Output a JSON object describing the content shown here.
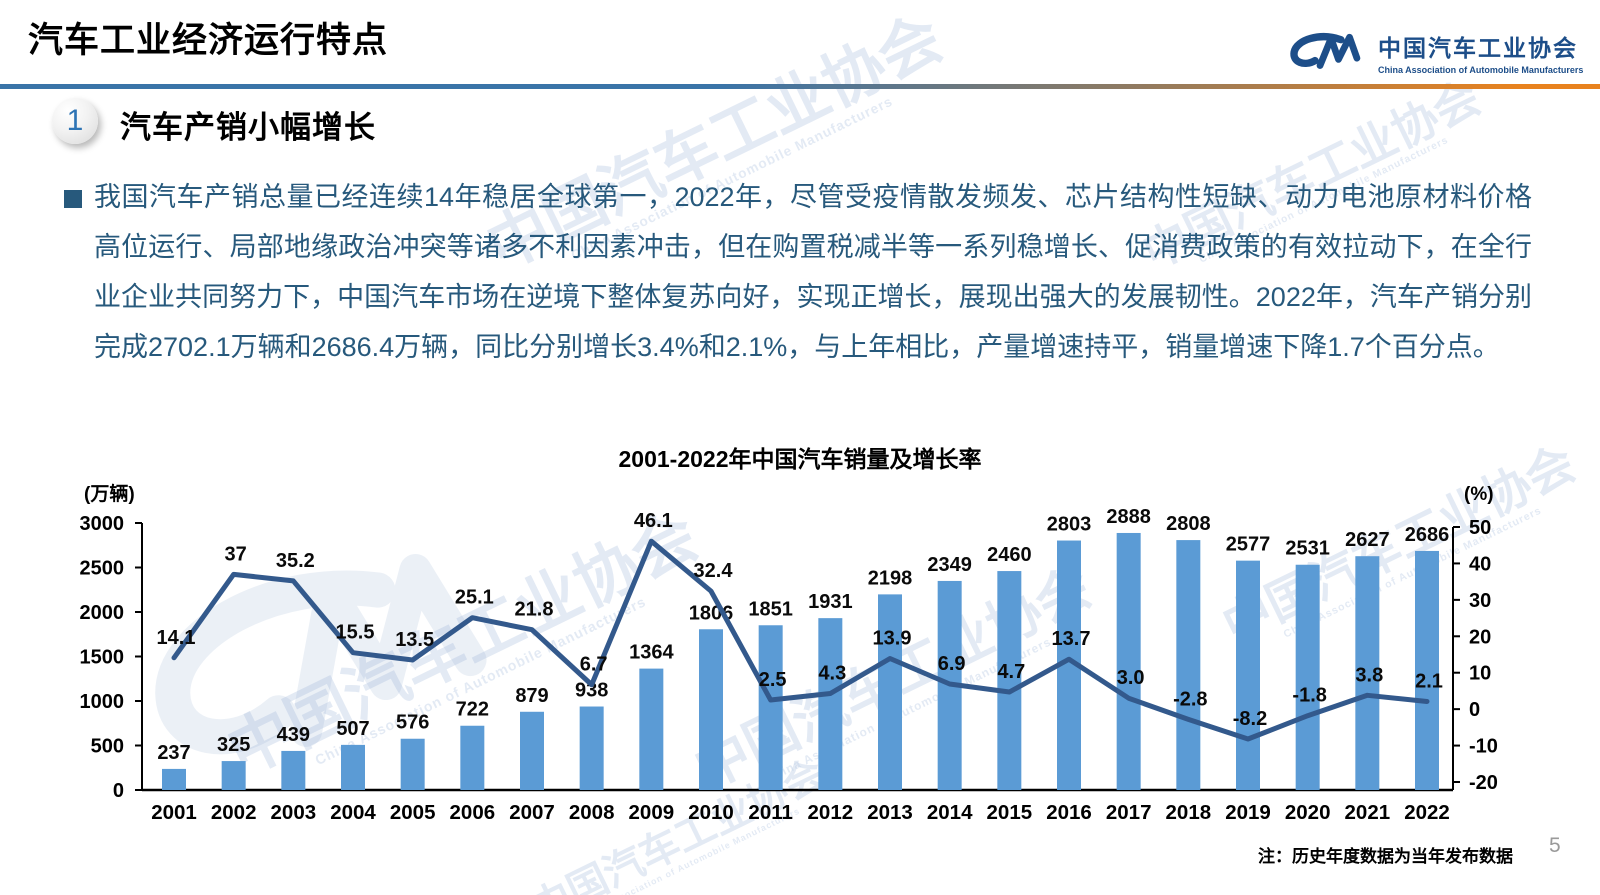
{
  "page": {
    "title": "汽车工业经济运行特点",
    "note": "注：历史年度数据为当年发布数据",
    "page_number": "5"
  },
  "logo": {
    "name_cn": "中国汽车工业协会",
    "name_en": "China Association of Automobile Manufacturers"
  },
  "section": {
    "number": "1",
    "heading": "汽车产销小幅增长"
  },
  "body_paragraph": "我国汽车产销总量已经连续14年稳居全球第一，2022年，尽管受疫情散发频发、芯片结构性短缺、动力电池原材料价格高位运行、局部地缘政治冲突等诸多不利因素冲击，但在购置税减半等一系列稳增长、促消费政策的有效拉动下，在全行业企业共同努力下，中国汽车市场在逆境下整体复苏向好，实现正增长，展现出强大的发展韧性。2022年，汽车产销分别完成2702.1万辆和2686.4万辆，同比分别增长3.4%和2.1%，与上年相比，产量增速持平，销量增速下降1.7个百分点。",
  "watermark": {
    "text_cn": "中国汽车工业协会",
    "text_en": "China Association of Automobile Manufacturers"
  },
  "colors": {
    "bar": "#5b9bd5",
    "line": "#33598c",
    "body_text": "#27597c",
    "logo_blue": "#1d4e89",
    "rule_left": "#3a74a8",
    "rule_right": "#e8821e"
  },
  "chart_data": {
    "type": "bar",
    "combo": "bar+line",
    "title": "2001-2022年中国汽车销量及增长率",
    "grid": false,
    "legend_position": "none",
    "left_axis": {
      "label": "(万辆)",
      "min": 0,
      "max": 3000,
      "step": 500
    },
    "right_axis": {
      "label": "(%)",
      "min": -20,
      "max": 50,
      "step": 10
    },
    "categories": [
      "2001",
      "2002",
      "2003",
      "2004",
      "2005",
      "2006",
      "2007",
      "2008",
      "2009",
      "2010",
      "2011",
      "2012",
      "2013",
      "2014",
      "2015",
      "2016",
      "2017",
      "2018",
      "2019",
      "2020",
      "2021",
      "2022"
    ],
    "series": [
      {
        "name": "汽车销量",
        "type": "bar",
        "axis": "left",
        "color": "#5b9bd5",
        "values": [
          237,
          325,
          439,
          507,
          576,
          722,
          879,
          938,
          1364,
          1806,
          1851,
          1931,
          2198,
          2349,
          2460,
          2803,
          2888,
          2808,
          2577,
          2531,
          2627,
          2686
        ]
      },
      {
        "name": "增长率",
        "type": "line",
        "axis": "right",
        "color": "#33598c",
        "values": [
          14.1,
          37,
          35.2,
          15.5,
          13.5,
          25.1,
          21.8,
          6.7,
          46.1,
          32.4,
          2.5,
          4.3,
          13.9,
          6.9,
          4.7,
          13.7,
          3.0,
          -2.8,
          -8.2,
          -1.8,
          3.8,
          2.1
        ],
        "labels": [
          "14.1",
          "37",
          "35.2",
          "15.5",
          "13.5",
          "25.1",
          "21.8",
          "6.7",
          "46.1",
          "32.4",
          "2.5",
          "4.3",
          "13.9",
          "6.9",
          "4.7",
          "13.7",
          "3.0",
          "-2.8",
          "-8.2",
          "-1.8",
          "3.8",
          "2.1"
        ]
      }
    ]
  }
}
